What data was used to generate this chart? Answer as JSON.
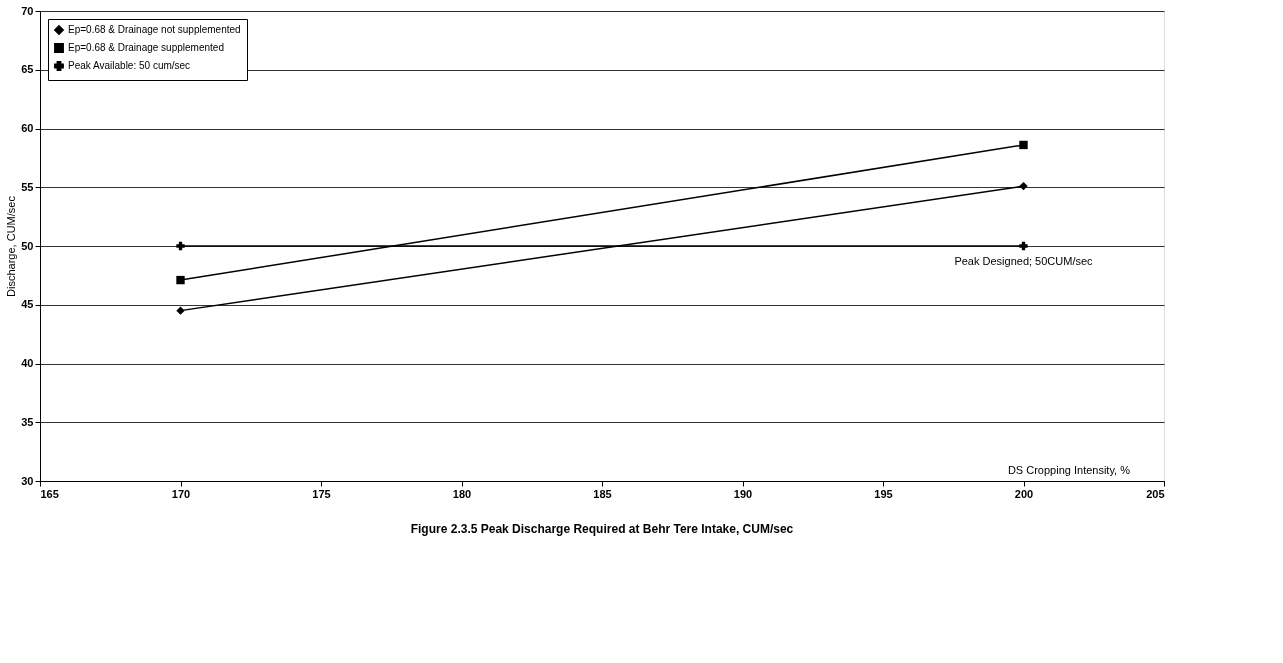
{
  "chart_data": {
    "type": "line",
    "title": "Figure 2.3.5 Peak Discharge Required at Behr Tere Intake, CUM/sec",
    "xlabel": "DS Cropping Intensity, %",
    "ylabel": "Discharge, CUM/sec",
    "x": [
      170,
      200
    ],
    "series": [
      {
        "name": "Ep=0.68 & Drainage not supplemented",
        "color": "#000000",
        "marker": "diamond",
        "values": [
          44.5,
          55.1
        ]
      },
      {
        "name": "Ep=0.68 & Drainage supplemented",
        "color": "#000000",
        "marker": "square",
        "values": [
          47.1,
          58.6
        ]
      },
      {
        "name": "Peak Available: 50 cum/sec",
        "color": "#000000",
        "marker": "cross",
        "values": [
          50,
          50
        ]
      }
    ],
    "annotations": [
      {
        "text": "Peak Designed; 50CUM/sec",
        "x": 200,
        "y": 50
      }
    ],
    "xlim": [
      165,
      205
    ],
    "xticks": [
      165,
      170,
      175,
      180,
      185,
      190,
      195,
      200,
      205
    ],
    "ylim": [
      30,
      70
    ],
    "yticks": [
      30,
      35,
      40,
      45,
      50,
      55,
      60,
      65,
      70
    ],
    "grid": "y",
    "legend": "top left",
    "line_style": "solid"
  }
}
